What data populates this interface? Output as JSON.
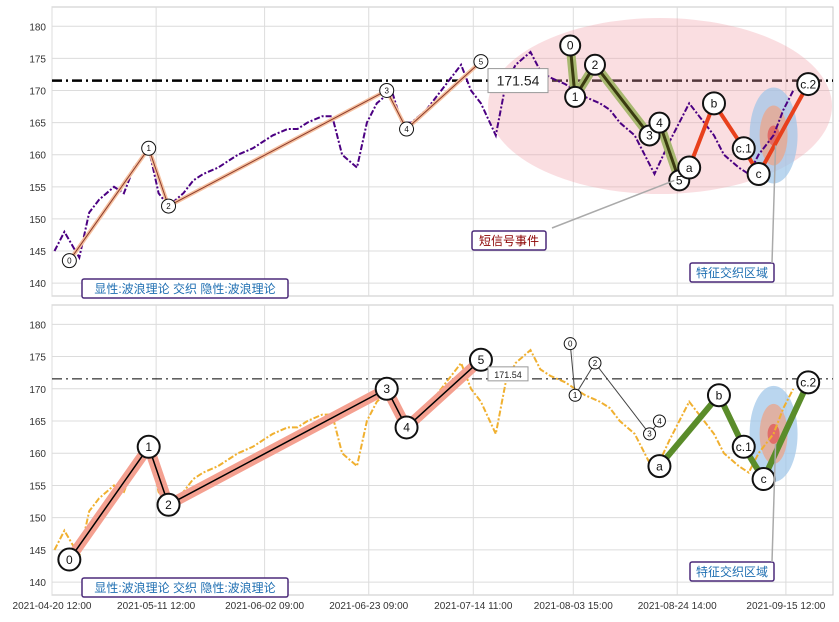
{
  "chart_data": [
    {
      "type": "line",
      "panel": "top",
      "ylim": [
        138,
        183
      ],
      "yticks": [
        140,
        145,
        150,
        155,
        160,
        165,
        170,
        175,
        180
      ],
      "hline": 171.54,
      "hline_label": "171.54",
      "series": [
        {
          "color": "#4b0082",
          "style": "dashed",
          "x": [
            "2021-04-21",
            "2021-04-23",
            "2021-04-26",
            "2021-04-28",
            "2021-04-30",
            "2021-05-03",
            "2021-05-05",
            "2021-05-07",
            "2021-05-10",
            "2021-05-12",
            "2021-05-14",
            "2021-05-17",
            "2021-05-19",
            "2021-05-21",
            "2021-05-24",
            "2021-05-26",
            "2021-05-28",
            "2021-05-31",
            "2021-06-02",
            "2021-06-04",
            "2021-06-07",
            "2021-06-09",
            "2021-06-11",
            "2021-06-14",
            "2021-06-16",
            "2021-06-18",
            "2021-06-21",
            "2021-06-23",
            "2021-06-25",
            "2021-06-28",
            "2021-06-30",
            "2021-07-02",
            "2021-07-05",
            "2021-07-07",
            "2021-07-09",
            "2021-07-12",
            "2021-07-14",
            "2021-07-16",
            "2021-07-19",
            "2021-07-21",
            "2021-07-23",
            "2021-07-26",
            "2021-07-28",
            "2021-07-30",
            "2021-08-02",
            "2021-08-04",
            "2021-08-06",
            "2021-08-09",
            "2021-08-11",
            "2021-08-13",
            "2021-08-16",
            "2021-08-18",
            "2021-08-20",
            "2021-08-23",
            "2021-08-25",
            "2021-08-27",
            "2021-08-30",
            "2021-09-01",
            "2021-09-03",
            "2021-09-06",
            "2021-09-08",
            "2021-09-10",
            "2021-09-13",
            "2021-09-15",
            "2021-09-17"
          ],
          "values": [
            145,
            148,
            144,
            151,
            153,
            155,
            154,
            158,
            161,
            154,
            152,
            154,
            156,
            157,
            158,
            159,
            160,
            161,
            162,
            163,
            164,
            164,
            165,
            166,
            166,
            160,
            158,
            165,
            168,
            170,
            165,
            165,
            167,
            169,
            171,
            174,
            170,
            168,
            163,
            171,
            174,
            176,
            173,
            172,
            171,
            170,
            169,
            168,
            167,
            165,
            163,
            160,
            157,
            162,
            165,
            168,
            165,
            163,
            160,
            158,
            157,
            160,
            163,
            167,
            170
          ]
        }
      ],
      "waves": [
        {
          "labels": [
            "0",
            "1",
            "2",
            "3",
            "4",
            "5"
          ],
          "x": [
            "2021-04-24",
            "2021-05-10",
            "2021-05-14",
            "2021-06-27",
            "2021-07-01",
            "2021-07-16"
          ],
          "values": [
            143.5,
            161,
            152,
            170,
            164,
            174.5
          ]
        },
        {
          "labels": [
            "0",
            "1",
            "2",
            "3",
            "4",
            "5"
          ],
          "x": [
            "2021-08-03",
            "2021-08-04",
            "2021-08-08",
            "2021-08-19",
            "2021-08-21",
            "2021-08-25"
          ],
          "values": [
            177,
            169,
            174,
            163,
            165,
            156
          ]
        },
        {
          "labels": [
            "a",
            "b",
            "c.1",
            "c",
            "c.2"
          ],
          "x": [
            "2021-08-27",
            "2021-09-01",
            "2021-09-07",
            "2021-09-10",
            "2021-09-20"
          ],
          "values": [
            158,
            168,
            161,
            157,
            171
          ]
        }
      ],
      "annotations": [
        {
          "text": "短信号事件",
          "color": "#8b0000"
        },
        {
          "text": "特征交织区域",
          "color": "#1f6fb2"
        },
        {
          "text": "显性:波浪理论 交织 隐性:波浪理论",
          "color": "#1f6fb2"
        }
      ]
    },
    {
      "type": "line",
      "panel": "bottom",
      "ylim": [
        138,
        183
      ],
      "yticks": [
        140,
        145,
        150,
        155,
        160,
        165,
        170,
        175,
        180
      ],
      "xticks": [
        "2021-04-20 12:00",
        "2021-05-11 12:00",
        "2021-06-02 09:00",
        "2021-06-23 09:00",
        "2021-07-14 11:00",
        "2021-08-03 15:00",
        "2021-08-24 14:00",
        "2021-09-15 12:00"
      ],
      "hline": 171.54,
      "hline_label": "171.54",
      "series": [
        {
          "color": "#f0b030",
          "style": "dashed",
          "x": [
            "2021-04-21",
            "2021-04-23",
            "2021-04-26",
            "2021-04-28",
            "2021-04-30",
            "2021-05-03",
            "2021-05-05",
            "2021-05-07",
            "2021-05-10",
            "2021-05-12",
            "2021-05-14",
            "2021-05-17",
            "2021-05-19",
            "2021-05-21",
            "2021-05-24",
            "2021-05-26",
            "2021-05-28",
            "2021-05-31",
            "2021-06-02",
            "2021-06-04",
            "2021-06-07",
            "2021-06-09",
            "2021-06-11",
            "2021-06-14",
            "2021-06-16",
            "2021-06-18",
            "2021-06-21",
            "2021-06-23",
            "2021-06-25",
            "2021-06-28",
            "2021-06-30",
            "2021-07-02",
            "2021-07-05",
            "2021-07-07",
            "2021-07-09",
            "2021-07-12",
            "2021-07-14",
            "2021-07-16",
            "2021-07-19",
            "2021-07-21",
            "2021-07-23",
            "2021-07-26",
            "2021-07-28",
            "2021-07-30",
            "2021-08-02",
            "2021-08-04",
            "2021-08-06",
            "2021-08-09",
            "2021-08-11",
            "2021-08-13",
            "2021-08-16",
            "2021-08-18",
            "2021-08-20",
            "2021-08-23",
            "2021-08-25",
            "2021-08-27",
            "2021-08-30",
            "2021-09-01",
            "2021-09-03",
            "2021-09-06",
            "2021-09-08",
            "2021-09-10",
            "2021-09-13",
            "2021-09-15",
            "2021-09-17"
          ],
          "values": [
            145,
            148,
            144,
            151,
            153,
            155,
            154,
            158,
            161,
            154,
            152,
            154,
            156,
            157,
            158,
            159,
            160,
            161,
            162,
            163,
            164,
            164,
            165,
            166,
            166,
            160,
            158,
            165,
            168,
            170,
            165,
            165,
            167,
            169,
            171,
            174,
            170,
            168,
            163,
            171,
            174,
            176,
            173,
            172,
            171,
            170,
            169,
            168,
            167,
            165,
            163,
            160,
            157,
            162,
            165,
            168,
            165,
            163,
            160,
            158,
            157,
            160,
            163,
            167,
            170
          ]
        }
      ],
      "waves": [
        {
          "labels": [
            "0",
            "1",
            "2",
            "3",
            "4",
            "5"
          ],
          "x": [
            "2021-04-24",
            "2021-05-10",
            "2021-05-14",
            "2021-06-27",
            "2021-07-01",
            "2021-07-16"
          ],
          "values": [
            143.5,
            161,
            152,
            170,
            164,
            174.5
          ]
        },
        {
          "labels": [
            "0",
            "1",
            "2",
            "3",
            "4"
          ],
          "x": [
            "2021-08-03",
            "2021-08-04",
            "2021-08-08",
            "2021-08-19",
            "2021-08-21"
          ],
          "values": [
            177,
            169,
            174,
            163,
            165
          ]
        },
        {
          "labels": [
            "a",
            "b",
            "c.1",
            "c",
            "c.2"
          ],
          "x": [
            "2021-08-21",
            "2021-09-02",
            "2021-09-07",
            "2021-09-11",
            "2021-09-20"
          ],
          "values": [
            158,
            169,
            161,
            156,
            171
          ]
        }
      ],
      "annotations": [
        {
          "text": "特征交织区域",
          "color": "#1f6fb2"
        },
        {
          "text": "显性:波浪理论 交织 隐性:波浪理论",
          "color": "#1f6fb2"
        }
      ]
    }
  ]
}
